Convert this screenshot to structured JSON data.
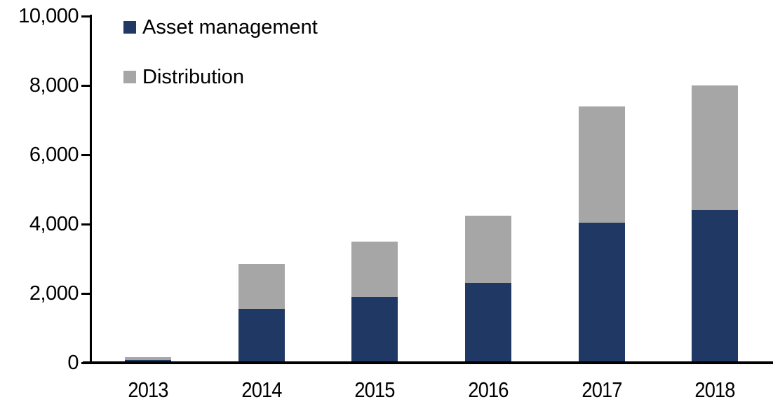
{
  "chart_data": {
    "type": "bar",
    "stacked": true,
    "title": "",
    "xlabel": "",
    "ylabel": "",
    "categories": [
      "2013",
      "2014",
      "2015",
      "2016",
      "2017",
      "2018"
    ],
    "series": [
      {
        "name": "Asset management",
        "color": "#1f3864",
        "values": [
          80,
          1550,
          1900,
          2300,
          4050,
          4400
        ]
      },
      {
        "name": "Distribution",
        "color": "#a6a6a6",
        "values": [
          90,
          1300,
          1600,
          1950,
          3350,
          3600
        ]
      }
    ],
    "totals": [
      170,
      2850,
      3500,
      4250,
      7400,
      8000
    ],
    "ylim": [
      0,
      10000
    ],
    "y_ticks": [
      0,
      2000,
      4000,
      6000,
      8000,
      10000
    ],
    "y_tick_labels": [
      "0",
      "2,000",
      "4,000",
      "6,000",
      "8,000",
      "10,000"
    ],
    "grid": false,
    "legend_position": "top-left"
  },
  "colors": {
    "axis": "#000000",
    "background": "#ffffff",
    "asset_management": "#1f3864",
    "distribution": "#a6a6a6"
  }
}
